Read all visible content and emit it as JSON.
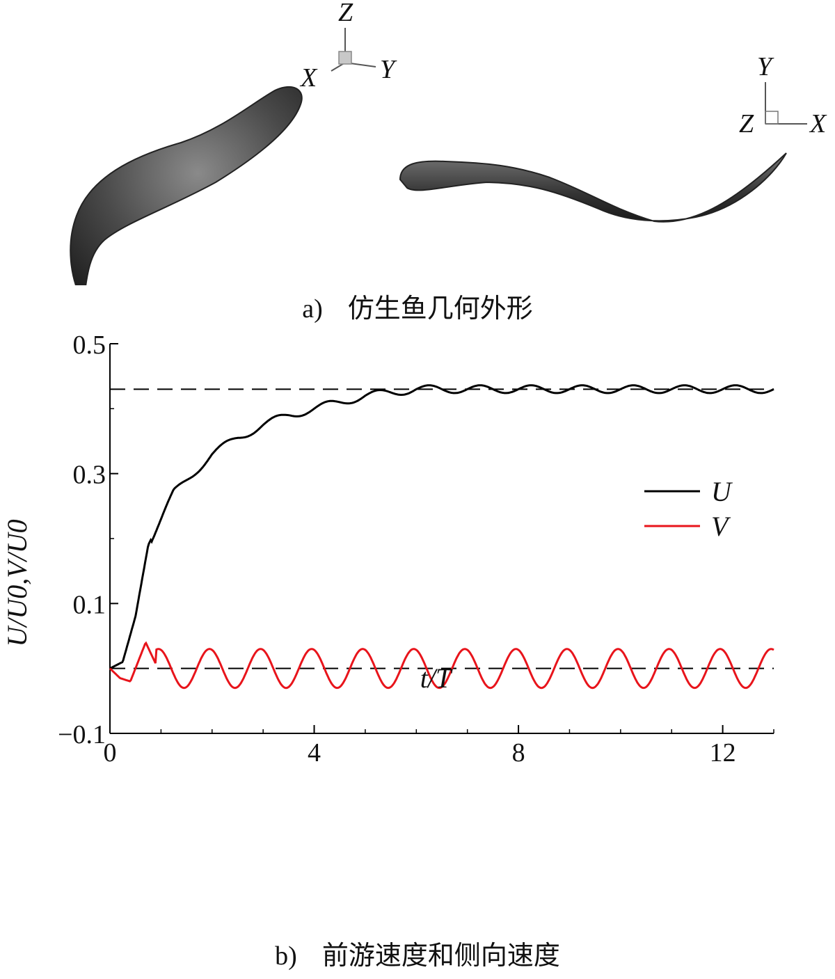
{
  "panel_a": {
    "caption_label": "a)",
    "caption_text": "仿生鱼几何外形",
    "axes_3d": {
      "z": "Z",
      "x": "X",
      "y": "Y"
    },
    "axes_top": {
      "y": "Y",
      "z": "Z",
      "x": "X"
    }
  },
  "panel_b": {
    "caption_label": "b)",
    "caption_text": "前游速度和侧向速度"
  },
  "colors": {
    "U": "#000000",
    "V": "#e8141b",
    "reference": "#000000"
  },
  "chart_data": {
    "type": "line",
    "title": "",
    "xlabel": "t/T",
    "ylabel": "U/U0,V/U0",
    "xlim": [
      0,
      13
    ],
    "ylim": [
      -0.1,
      0.5
    ],
    "xticks": [
      0,
      4,
      8,
      12
    ],
    "yticks": [
      -0.1,
      0.1,
      0.3,
      0.5
    ],
    "xtick_labels": [
      "0",
      "4",
      "8",
      "12"
    ],
    "ytick_labels": [
      "−0.1",
      "0.1",
      "0.3",
      "0.5"
    ],
    "legend": {
      "position": "right",
      "entries": [
        "U",
        "V"
      ]
    },
    "grid": false,
    "reference_lines": [
      0.43,
      0.0
    ],
    "series": [
      {
        "name": "U",
        "x": [
          0,
          0.25,
          0.5,
          0.75,
          1.0,
          1.25,
          1.5,
          1.75,
          2.0,
          2.5,
          3.0,
          3.5,
          4.0,
          4.5,
          5.0,
          5.5,
          6.0,
          7.0,
          8.0,
          9.0,
          10.0,
          11.0,
          12.0,
          13.0
        ],
        "y": [
          0.0,
          0.01,
          0.08,
          0.19,
          0.23,
          0.27,
          0.29,
          0.31,
          0.33,
          0.355,
          0.375,
          0.39,
          0.4,
          0.41,
          0.42,
          0.425,
          0.43,
          0.43,
          0.43,
          0.43,
          0.43,
          0.43,
          0.43,
          0.43
        ]
      },
      {
        "name": "V",
        "x": [
          0,
          0.2,
          0.4,
          0.7,
          1.0,
          1.2,
          1.7,
          2.2,
          2.7,
          3.2,
          3.7,
          4.2,
          4.7,
          5.2,
          5.7,
          6.2,
          6.7,
          7.2,
          7.7,
          8.2,
          8.7,
          9.2,
          9.7,
          10.2,
          10.7,
          11.2,
          11.7,
          12.2,
          12.7,
          13.0
        ],
        "y": [
          0.0,
          -0.015,
          -0.02,
          0.04,
          -0.01,
          -0.03,
          0.03,
          -0.03,
          0.03,
          -0.03,
          0.03,
          -0.03,
          0.03,
          -0.03,
          0.03,
          -0.03,
          0.03,
          -0.03,
          0.03,
          -0.03,
          0.03,
          -0.03,
          0.03,
          -0.03,
          0.03,
          -0.03,
          0.03,
          -0.03,
          0.03,
          -0.01
        ]
      }
    ]
  }
}
